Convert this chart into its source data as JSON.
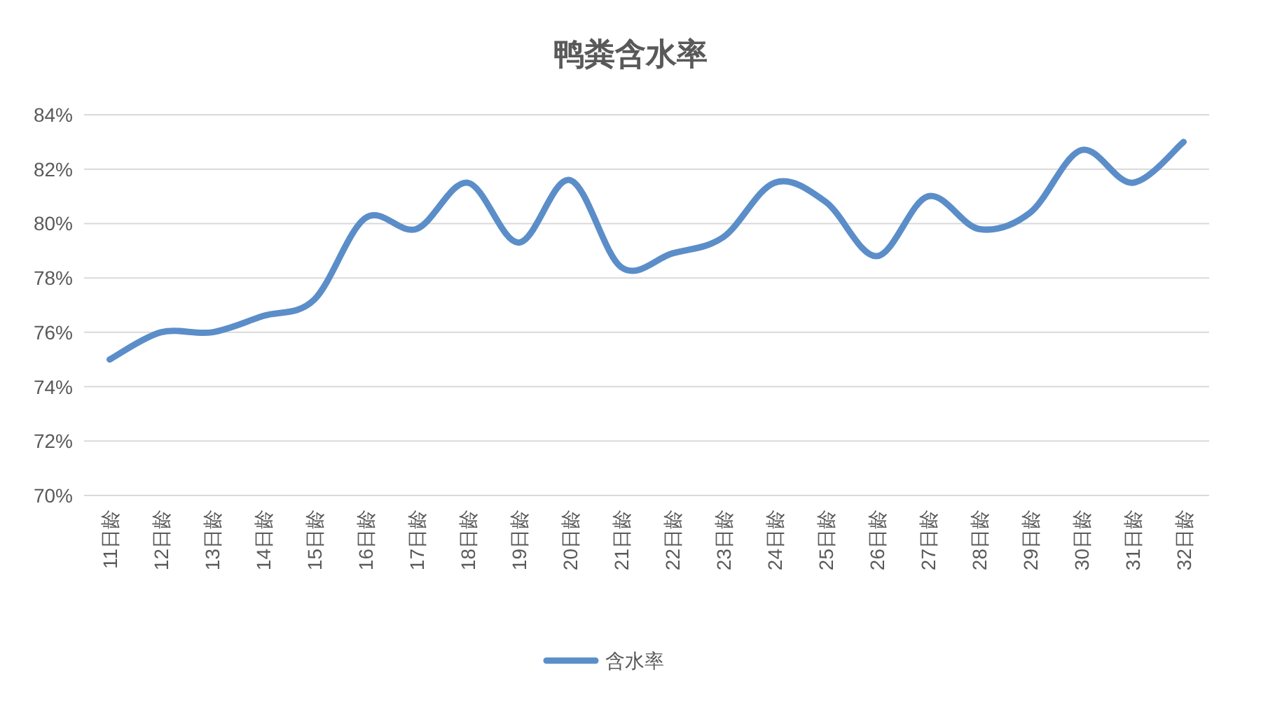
{
  "chart_data": {
    "type": "line",
    "title": "鸭粪含水率",
    "categories": [
      "11日龄",
      "12日龄",
      "13日龄",
      "14日龄",
      "15日龄",
      "16日龄",
      "17日龄",
      "18日龄",
      "19日龄",
      "20日龄",
      "21日龄",
      "22日龄",
      "23日龄",
      "24日龄",
      "25日龄",
      "26日龄",
      "27日龄",
      "28日龄",
      "29日龄",
      "30日龄",
      "31日龄",
      "32日龄"
    ],
    "series": [
      {
        "name": "含水率",
        "color": "#5b8ec9",
        "values": [
          75.0,
          76.0,
          76.0,
          76.6,
          77.2,
          80.2,
          79.8,
          81.5,
          79.3,
          81.6,
          78.4,
          78.9,
          79.5,
          81.5,
          80.8,
          78.8,
          81.0,
          79.8,
          80.4,
          82.7,
          81.5,
          83.0
        ]
      }
    ],
    "ylim": [
      70,
      84
    ],
    "yticks": [
      {
        "value": 70,
        "label": "70%"
      },
      {
        "value": 72,
        "label": "72%"
      },
      {
        "value": 74,
        "label": "74%"
      },
      {
        "value": 76,
        "label": "76%"
      },
      {
        "value": 78,
        "label": "78%"
      },
      {
        "value": 80,
        "label": "80%"
      },
      {
        "value": 82,
        "label": "82%"
      },
      {
        "value": 84,
        "label": "84%"
      }
    ],
    "grid": "y",
    "legend": "bottom",
    "marker": "none",
    "line_style": "solid"
  }
}
